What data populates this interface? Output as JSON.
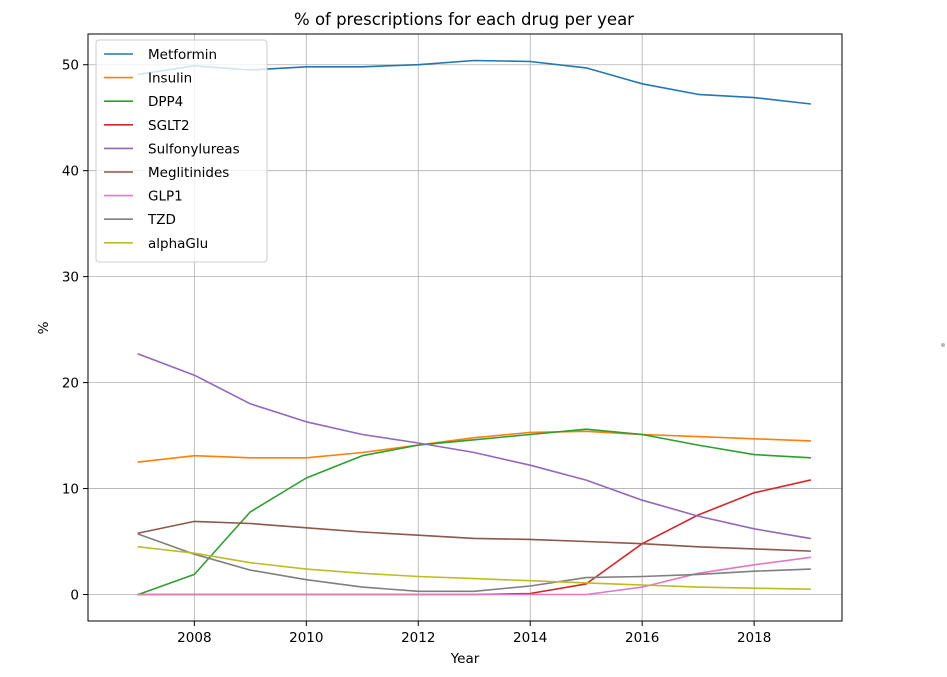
{
  "chart_data": {
    "type": "line",
    "title": "% of prescriptions for each drug per year",
    "xlabel": "Year",
    "ylabel": "%",
    "xlim": [
      2006.1,
      2019.57
    ],
    "ylim": [
      -2.5,
      52.9
    ],
    "xticks": [
      2008,
      2010,
      2012,
      2014,
      2016,
      2018
    ],
    "yticks": [
      0,
      10,
      20,
      30,
      40,
      50
    ],
    "grid": true,
    "legend": "top-left",
    "x": [
      2007,
      2008,
      2009,
      2010,
      2011,
      2012,
      2013,
      2014,
      2015,
      2016,
      2017,
      2018,
      2019
    ],
    "series": [
      {
        "name": "Metformin",
        "color": "#1f77b4",
        "values": [
          49.1,
          49.9,
          49.5,
          49.8,
          49.8,
          50.0,
          50.4,
          50.3,
          49.7,
          48.2,
          47.2,
          46.9,
          46.3
        ]
      },
      {
        "name": "Insulin",
        "color": "#ff7f0e",
        "values": [
          12.5,
          13.1,
          12.9,
          12.9,
          13.4,
          14.1,
          14.8,
          15.3,
          15.4,
          15.1,
          14.9,
          14.7,
          14.5
        ]
      },
      {
        "name": "DPP4",
        "color": "#2ca02c",
        "values": [
          0,
          1.9,
          7.8,
          11.0,
          13.1,
          14.1,
          14.6,
          15.1,
          15.6,
          15.1,
          14.1,
          13.2,
          12.9
        ]
      },
      {
        "name": "SGLT2",
        "color": "#d62728",
        "values": [
          0,
          0,
          0,
          0,
          0,
          0,
          0,
          0.1,
          1.0,
          4.8,
          7.5,
          9.6,
          10.8
        ]
      },
      {
        "name": "Sulfonylureas",
        "color": "#9467bd",
        "values": [
          22.7,
          20.7,
          18.0,
          16.3,
          15.1,
          14.3,
          13.4,
          12.2,
          10.8,
          8.9,
          7.4,
          6.2,
          5.3
        ]
      },
      {
        "name": "Meglitinides",
        "color": "#8c564b",
        "values": [
          5.8,
          6.9,
          6.7,
          6.3,
          5.9,
          5.6,
          5.3,
          5.2,
          5.0,
          4.8,
          4.5,
          4.3,
          4.1
        ]
      },
      {
        "name": "GLP1",
        "color": "#e377c2",
        "values": [
          0,
          0,
          0,
          0,
          0,
          0,
          0,
          0,
          0,
          0.7,
          2.0,
          2.8,
          3.5
        ]
      },
      {
        "name": "TZD",
        "color": "#7f7f7f",
        "values": [
          5.7,
          3.8,
          2.3,
          1.4,
          0.7,
          0.3,
          0.3,
          0.8,
          1.6,
          1.7,
          1.9,
          2.2,
          2.4
        ]
      },
      {
        "name": "alphaGlu",
        "color": "#bcbd22",
        "values": [
          4.5,
          3.9,
          3.0,
          2.4,
          2.0,
          1.7,
          1.5,
          1.3,
          1.1,
          0.9,
          0.7,
          0.6,
          0.5
        ]
      }
    ]
  }
}
